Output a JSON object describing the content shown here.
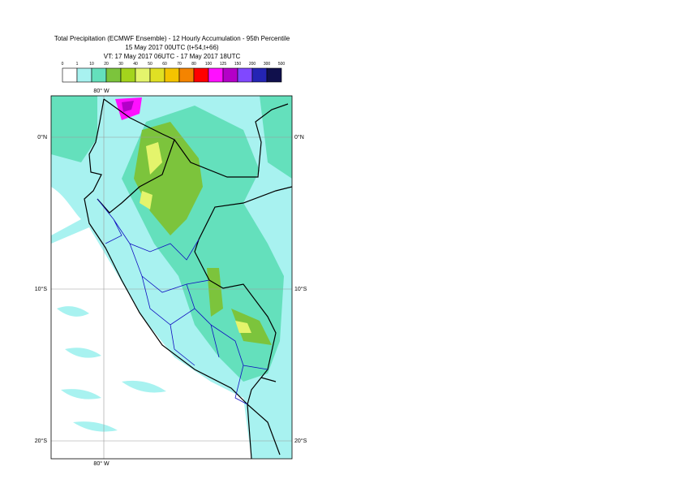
{
  "header": {
    "title": "Total Precipitation (ECMWF Ensemble) - 12 Hourly Accumulation - 95th Percentile",
    "subtitle": "15 May 2017 00UTC (t+54,t+66)",
    "valid_time": "VT: 17 May 2017 06UTC - 17 May 2017 18UTC"
  },
  "legend": {
    "levels": [
      0,
      1,
      10,
      20,
      30,
      40,
      50,
      60,
      70,
      80,
      100,
      125,
      150,
      200,
      300,
      500
    ],
    "colors": [
      "#ffffff",
      "#a8f2f0",
      "#64e0bc",
      "#7cc43c",
      "#a4d41c",
      "#e4f46c",
      "#e0e024",
      "#f4c400",
      "#f48400",
      "#ff0000",
      "#ff10ff",
      "#b400c8",
      "#8048ff",
      "#2424b4",
      "#10104c"
    ]
  },
  "map": {
    "lon_label": "80° W",
    "lat_labels": [
      "0°N",
      "10°S",
      "20°S"
    ]
  }
}
